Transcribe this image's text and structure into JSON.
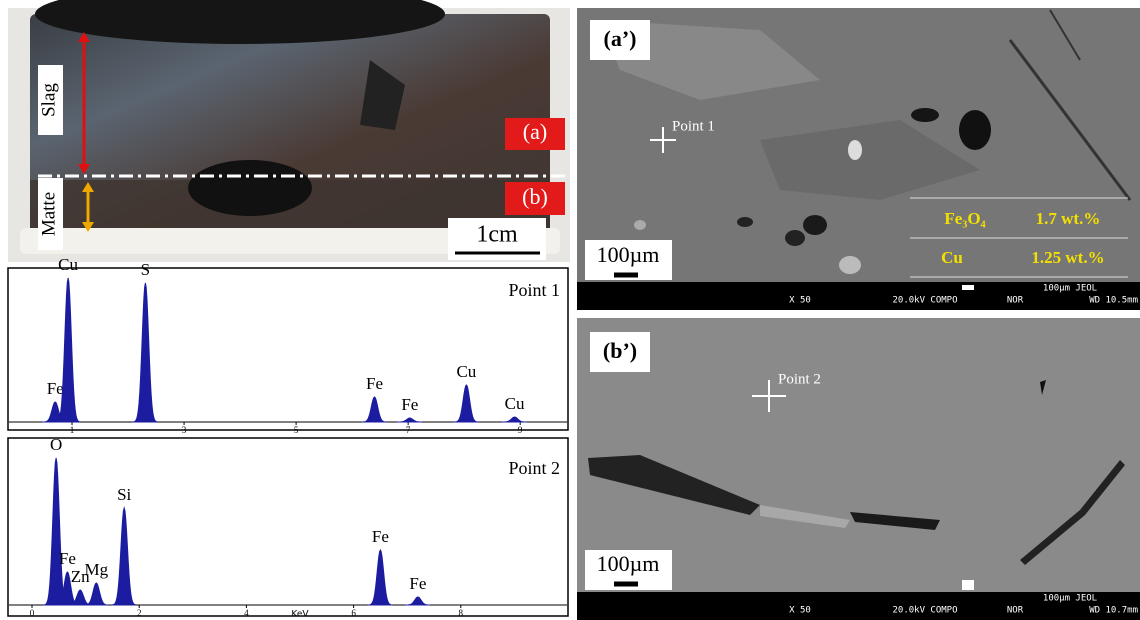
{
  "photo": {
    "slag": "Slag",
    "matte": "Matte",
    "a": "(a)",
    "b": "(b)",
    "scale": "1cm"
  },
  "spectra": [
    {
      "type": "spectrum",
      "label": "Point 1",
      "xlim": [
        0,
        9.8
      ],
      "xticks": [
        1,
        3,
        5,
        7,
        9
      ],
      "color": "#1c1ca0",
      "peaks": [
        {
          "label": "Fe",
          "x": 0.7,
          "height": 20
        },
        {
          "label": "Cu",
          "x": 0.93,
          "height": 144
        },
        {
          "label": "S",
          "x": 2.31,
          "height": 139
        },
        {
          "label": "Fe",
          "x": 6.4,
          "height": 25
        },
        {
          "label": "Fe",
          "x": 7.03,
          "height": 4
        },
        {
          "label": "Cu",
          "x": 8.04,
          "height": 37
        },
        {
          "label": "Cu",
          "x": 8.9,
          "height": 5
        }
      ]
    },
    {
      "type": "spectrum",
      "label": "Point 2",
      "xlabel": "KeV",
      "xlim": [
        0,
        10
      ],
      "xticks": [
        0,
        2,
        4,
        6,
        8
      ],
      "color": "#1c1ca0",
      "peaks": [
        {
          "label": "O",
          "x": 0.45,
          "height": 147
        },
        {
          "label": "Fe",
          "x": 0.66,
          "height": 33
        },
        {
          "label": "Zn",
          "x": 0.9,
          "height": 15
        },
        {
          "label": "Mg",
          "x": 1.2,
          "height": 22
        },
        {
          "label": "Si",
          "x": 1.72,
          "height": 97
        },
        {
          "label": "Fe",
          "x": 6.5,
          "height": 55
        },
        {
          "label": "Fe",
          "x": 7.2,
          "height": 8
        }
      ]
    }
  ],
  "sem": [
    {
      "label": "(a’)",
      "point": "Point 1",
      "scale": "100µm",
      "table": [
        [
          "Fe₃O₄",
          "1.7 wt.%"
        ],
        [
          "Cu",
          "1.25 wt.%"
        ]
      ],
      "bar": {
        "mag": "X 50",
        "kv": "20.0kV COMPO",
        "mode": "NOR",
        "scale": "100µm JEOL",
        "wd": "WD 10.5mm"
      }
    },
    {
      "label": "(b’)",
      "point": "Point 2",
      "scale": "100µm",
      "bar": {
        "mag": "X 50",
        "kv": "20.0kV COMPO",
        "mode": "NOR",
        "scale": "100µm JEOL",
        "wd": "WD 10.7mm"
      }
    }
  ]
}
